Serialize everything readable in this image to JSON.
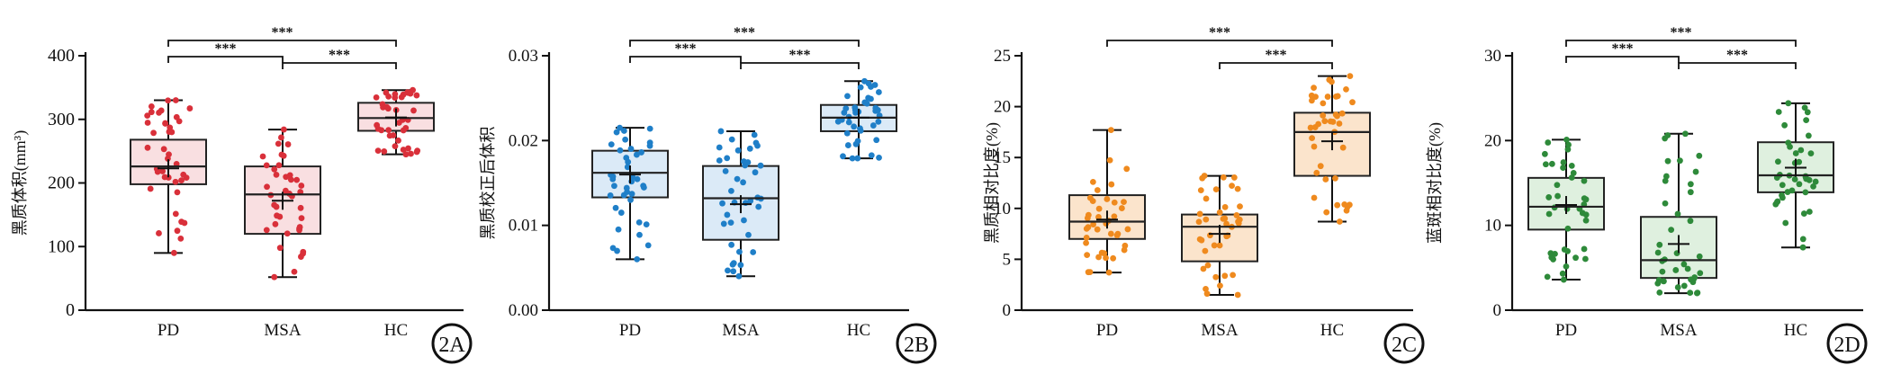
{
  "chart_data": [
    {
      "type": "box",
      "panel_label": "2A",
      "ylabel": "黑质体积(mm³)",
      "ylim": [
        0,
        400
      ],
      "yticks": [
        0,
        100,
        200,
        300,
        400
      ],
      "ytick_labels": [
        "0",
        "100",
        "200",
        "300",
        "400"
      ],
      "categories": [
        "PD",
        "MSA",
        "HC"
      ],
      "colors": {
        "stroke": "#d9303a",
        "fill": "#f9dfe1"
      },
      "boxes": [
        {
          "group": "PD",
          "min": 90,
          "q1": 198,
          "median": 226,
          "q3": 268,
          "max": 330,
          "mean": 223
        },
        {
          "group": "MSA",
          "min": 52,
          "q1": 120,
          "median": 182,
          "q3": 226,
          "max": 284,
          "mean": 172
        },
        {
          "group": "HC",
          "min": 245,
          "q1": 282,
          "median": 302,
          "q3": 326,
          "max": 346,
          "mean": 303
        }
      ],
      "significance": [
        {
          "from": "PD",
          "to": "MSA",
          "label": "***"
        },
        {
          "from": "MSA",
          "to": "HC",
          "label": "***"
        },
        {
          "from": "PD",
          "to": "HC",
          "label": "***"
        }
      ]
    },
    {
      "type": "box",
      "panel_label": "2B",
      "ylabel": "黑质校正后体积",
      "ylim": [
        0,
        0.03
      ],
      "yticks": [
        0,
        0.01,
        0.02,
        0.03
      ],
      "ytick_labels": [
        "0.00",
        "0.01",
        "0.02",
        "0.03"
      ],
      "categories": [
        "PD",
        "MSA",
        "HC"
      ],
      "colors": {
        "stroke": "#1f7fc8",
        "fill": "#dbeaf7"
      },
      "boxes": [
        {
          "group": "PD",
          "min": 0.006,
          "q1": 0.0133,
          "median": 0.0162,
          "q3": 0.0188,
          "max": 0.0215,
          "mean": 0.016
        },
        {
          "group": "MSA",
          "min": 0.004,
          "q1": 0.0083,
          "median": 0.0132,
          "q3": 0.017,
          "max": 0.0211,
          "mean": 0.0125
        },
        {
          "group": "HC",
          "min": 0.0179,
          "q1": 0.0211,
          "median": 0.0227,
          "q3": 0.0242,
          "max": 0.027,
          "mean": 0.0227
        }
      ],
      "significance": [
        {
          "from": "PD",
          "to": "MSA",
          "label": "***"
        },
        {
          "from": "MSA",
          "to": "HC",
          "label": "***"
        },
        {
          "from": "PD",
          "to": "HC",
          "label": "***"
        }
      ]
    },
    {
      "type": "box",
      "panel_label": "2C",
      "ylabel": "黑质相对比度(%)",
      "ylim": [
        0,
        25
      ],
      "yticks": [
        0,
        5,
        10,
        15,
        20,
        25
      ],
      "ytick_labels": [
        "0",
        "5",
        "10",
        "15",
        "20",
        "25"
      ],
      "categories": [
        "PD",
        "MSA",
        "HC"
      ],
      "colors": {
        "stroke": "#ef8a1e",
        "fill": "#fbe4cc"
      },
      "boxes": [
        {
          "group": "PD",
          "min": 3.7,
          "q1": 7.0,
          "median": 8.7,
          "q3": 11.3,
          "max": 17.7,
          "mean": 8.9
        },
        {
          "group": "MSA",
          "min": 1.5,
          "q1": 4.8,
          "median": 8.2,
          "q3": 9.4,
          "max": 13.2,
          "mean": 7.5
        },
        {
          "group": "HC",
          "min": 8.7,
          "q1": 13.2,
          "median": 17.5,
          "q3": 19.4,
          "max": 23.0,
          "mean": 16.6
        }
      ],
      "significance": [
        {
          "from": "MSA",
          "to": "HC",
          "label": "***"
        },
        {
          "from": "PD",
          "to": "HC",
          "label": "***"
        }
      ]
    },
    {
      "type": "box",
      "panel_label": "2D",
      "ylabel": "蓝斑相对比度(%)",
      "ylim": [
        0,
        30
      ],
      "yticks": [
        0,
        10,
        20,
        30
      ],
      "ytick_labels": [
        "0",
        "10",
        "20",
        "30"
      ],
      "categories": [
        "PD",
        "MSA",
        "HC"
      ],
      "colors": {
        "stroke": "#2e8a3a",
        "fill": "#dff0df"
      },
      "boxes": [
        {
          "group": "PD",
          "min": 3.6,
          "q1": 9.5,
          "median": 12.2,
          "q3": 15.6,
          "max": 20.1,
          "mean": 12.4
        },
        {
          "group": "MSA",
          "min": 2.0,
          "q1": 3.8,
          "median": 5.9,
          "q3": 11.0,
          "max": 20.8,
          "mean": 7.8
        },
        {
          "group": "HC",
          "min": 7.4,
          "q1": 13.9,
          "median": 15.9,
          "q3": 19.8,
          "max": 24.4,
          "mean": 16.8
        }
      ],
      "significance": [
        {
          "from": "PD",
          "to": "MSA",
          "label": "***"
        },
        {
          "from": "MSA",
          "to": "HC",
          "label": "***"
        },
        {
          "from": "PD",
          "to": "HC",
          "label": "***"
        }
      ]
    }
  ]
}
